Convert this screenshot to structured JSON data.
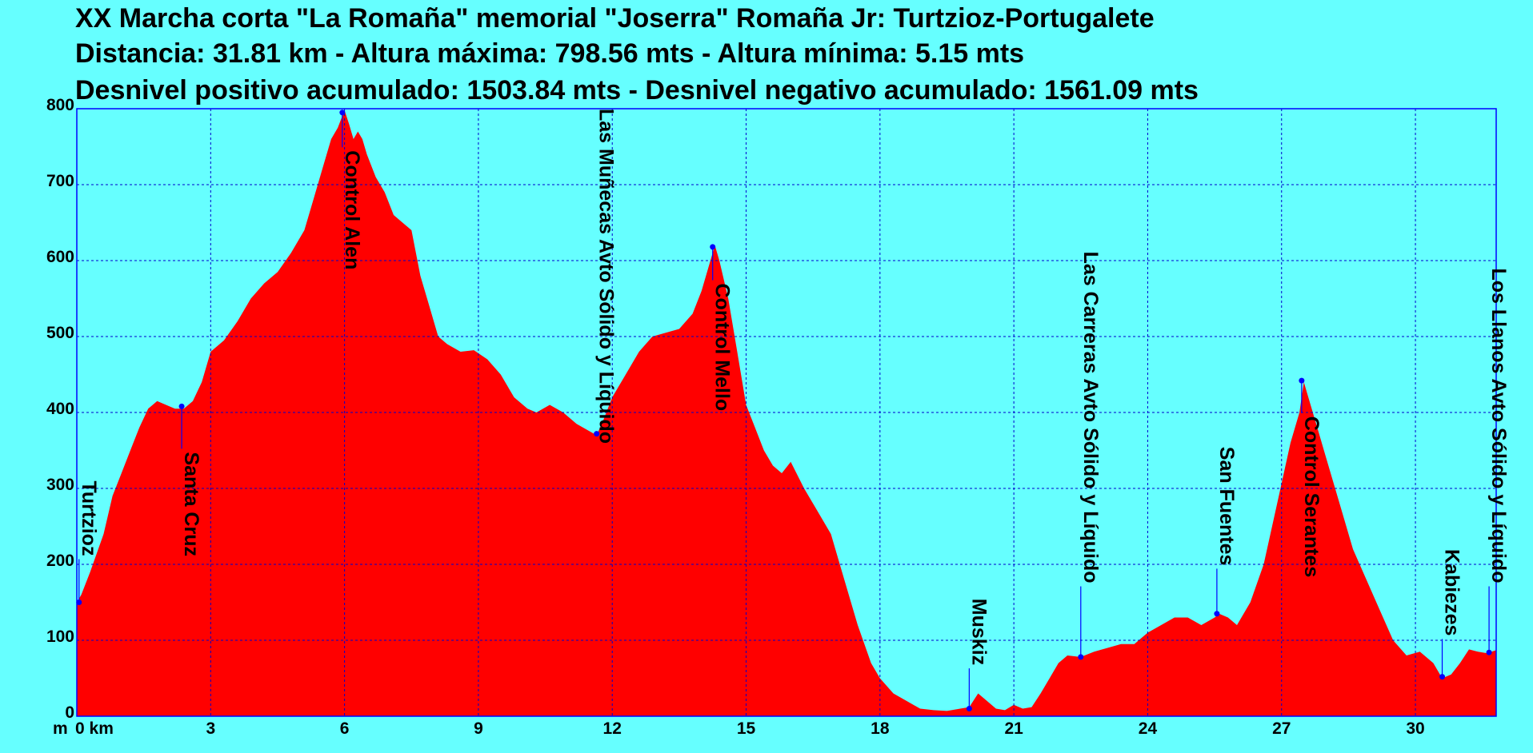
{
  "chart_data": {
    "type": "area",
    "title_lines": [
      "XX Marcha corta \"La Romaña\" memorial \"Joserra\" Romaña Jr: Turtzioz-Portugalete",
      "Distancia: 31.81 km - Altura máxima: 798.56 mts - Altura mínima: 5.15 mts",
      "Desnivel positivo acumulado: 1503.84 mts - Desnivel negativo acumulado: 1561.09 mts"
    ],
    "x_unit_label": "m",
    "xlim": [
      0,
      31.81
    ],
    "ylim": [
      0,
      800
    ],
    "x_ticks": [
      0,
      3,
      6,
      9,
      12,
      15,
      18,
      21,
      24,
      27,
      30
    ],
    "x_tick_labels": [
      "0 km",
      "3",
      "6",
      "9",
      "12",
      "15",
      "18",
      "21",
      "24",
      "27",
      "30"
    ],
    "y_ticks": [
      0,
      100,
      200,
      300,
      400,
      500,
      600,
      700,
      800
    ],
    "y_tick_labels": [
      "0",
      "100",
      "200",
      "300",
      "400",
      "500",
      "600",
      "700",
      "800"
    ],
    "grid": true,
    "colors": {
      "background": "#66ffff",
      "fill": "#ff0000",
      "frame": "#0000ff",
      "grid": "#0000cc",
      "marker": "#0000ff"
    },
    "series": [
      {
        "x": [
          0,
          0.1,
          0.3,
          0.6,
          0.8,
          1.0,
          1.2,
          1.4,
          1.6,
          1.8,
          2.0,
          2.2,
          2.4,
          2.6,
          2.8,
          3.0,
          3.3,
          3.6,
          3.9,
          4.2,
          4.5,
          4.8,
          5.1,
          5.3,
          5.5,
          5.7,
          5.85,
          6.0,
          6.1,
          6.2,
          6.3,
          6.4,
          6.5,
          6.7,
          6.9,
          7.1,
          7.3,
          7.5,
          7.7,
          7.9,
          8.1,
          8.3,
          8.6,
          8.9,
          9.2,
          9.5,
          9.8,
          10.1,
          10.3,
          10.6,
          10.9,
          11.2,
          11.5,
          11.65,
          11.8,
          12.0,
          12.3,
          12.6,
          12.9,
          13.2,
          13.5,
          13.8,
          14.0,
          14.2,
          14.3,
          14.4,
          14.6,
          14.8,
          15.0,
          15.2,
          15.4,
          15.6,
          15.8,
          16.0,
          16.3,
          16.6,
          16.9,
          17.2,
          17.5,
          17.8,
          18.0,
          18.3,
          18.6,
          18.9,
          19.2,
          19.5,
          19.8,
          20.0,
          20.2,
          20.4,
          20.6,
          20.8,
          21.0,
          21.2,
          21.4,
          21.6,
          21.8,
          22.0,
          22.2,
          22.5,
          22.8,
          23.1,
          23.4,
          23.7,
          24.0,
          24.3,
          24.6,
          24.9,
          25.2,
          25.5,
          25.6,
          25.8,
          26.0,
          26.3,
          26.6,
          26.9,
          27.2,
          27.4,
          27.5,
          27.6,
          27.8,
          28.0,
          28.3,
          28.6,
          28.9,
          29.2,
          29.5,
          29.8,
          30.1,
          30.4,
          30.6,
          30.8,
          31.0,
          31.2,
          31.4,
          31.6,
          31.81
        ],
        "y": [
          150,
          160,
          190,
          240,
          290,
          320,
          350,
          380,
          405,
          415,
          410,
          405,
          405,
          415,
          440,
          480,
          495,
          520,
          550,
          570,
          585,
          610,
          640,
          680,
          720,
          760,
          775,
          798,
          780,
          760,
          770,
          760,
          740,
          710,
          690,
          660,
          650,
          640,
          580,
          540,
          500,
          490,
          480,
          482,
          470,
          450,
          420,
          405,
          400,
          410,
          400,
          385,
          375,
          370,
          390,
          420,
          450,
          480,
          500,
          505,
          510,
          530,
          560,
          600,
          620,
          600,
          550,
          480,
          410,
          380,
          350,
          330,
          320,
          335,
          300,
          270,
          240,
          180,
          120,
          70,
          50,
          30,
          20,
          10,
          8,
          7,
          10,
          12,
          30,
          20,
          10,
          8,
          15,
          10,
          12,
          30,
          50,
          70,
          80,
          78,
          85,
          90,
          95,
          95,
          110,
          120,
          130,
          130,
          120,
          130,
          135,
          130,
          120,
          150,
          200,
          280,
          360,
          400,
          440,
          420,
          380,
          340,
          280,
          220,
          180,
          140,
          100,
          80,
          85,
          70,
          50,
          55,
          70,
          88,
          85,
          83,
          87
        ]
      }
    ],
    "waypoints": [
      {
        "name": "Turtzioz",
        "x": 0.05,
        "y": 150,
        "label_top_y": 310
      },
      {
        "name": "Santa Cruz",
        "x": 2.35,
        "y": 408,
        "label_top_y": 348
      },
      {
        "name": "Control Alen",
        "x": 5.95,
        "y": 795,
        "label_top_y": 745
      },
      {
        "name": "Las Muñecas Avto Sólido y Líquido",
        "x": 11.65,
        "y": 372,
        "label_top_y": 800
      },
      {
        "name": "Control Mello",
        "x": 14.25,
        "y": 618,
        "label_top_y": 570
      },
      {
        "name": "Muskiz",
        "x": 20.0,
        "y": 10,
        "label_top_y": 155
      },
      {
        "name": "Las Carreras Avto Sólido y Líquido",
        "x": 22.5,
        "y": 78,
        "label_top_y": 612
      },
      {
        "name": "San Fuentes",
        "x": 25.55,
        "y": 135,
        "label_top_y": 355
      },
      {
        "name": "Control Serantes",
        "x": 27.45,
        "y": 442,
        "label_top_y": 395
      },
      {
        "name": "Kabiezes",
        "x": 30.6,
        "y": 52,
        "label_top_y": 220
      },
      {
        "name": "Los Llanos Avto Sólido y Líquido",
        "x": 31.65,
        "y": 84,
        "label_top_y": 590
      }
    ]
  }
}
